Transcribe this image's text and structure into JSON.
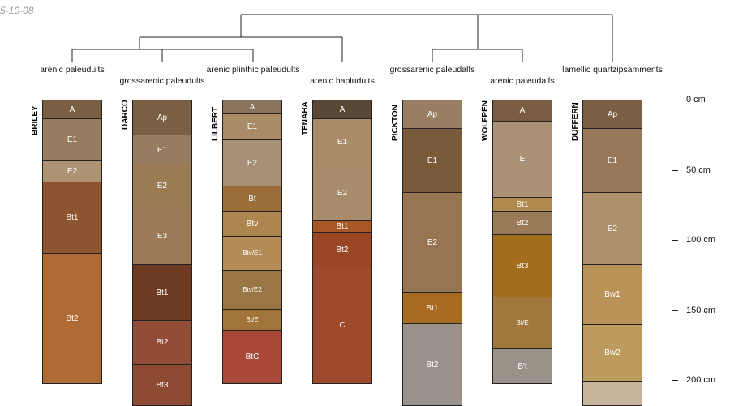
{
  "stamp": "5-10-08",
  "groups": [
    {
      "label": "arenic paleudults"
    },
    {
      "label": "grossarenic paleudults"
    },
    {
      "label": "arenic plinthic paleudults"
    },
    {
      "label": "arenic hapludults"
    },
    {
      "label": "grossarenic paleudalfs"
    },
    {
      "label": "arenic paleudalfs"
    },
    {
      "label": "lamellic quartzipsamments"
    }
  ],
  "depth_axis": {
    "ticks": [
      "0 cm",
      "50 cm",
      "100 cm",
      "150 cm",
      "200 cm"
    ]
  },
  "profiles": [
    {
      "name": "BRILEY",
      "horizons": [
        {
          "name": "A",
          "top": 0,
          "bottom": 13,
          "color": "#7a5f43"
        },
        {
          "name": "E1",
          "top": 13,
          "bottom": 43,
          "color": "#977c5f"
        },
        {
          "name": "E2",
          "top": 43,
          "bottom": 58,
          "color": "#ad9373"
        },
        {
          "name": "Bt1",
          "top": 58,
          "bottom": 109,
          "color": "#8c5530"
        },
        {
          "name": "Bt2",
          "top": 109,
          "bottom": 202,
          "color": "#b06b34"
        }
      ]
    },
    {
      "name": "DARCO",
      "horizons": [
        {
          "name": "Ap",
          "top": 0,
          "bottom": 25,
          "color": "#7a5f43"
        },
        {
          "name": "E1",
          "top": 25,
          "bottom": 46,
          "color": "#977c5f"
        },
        {
          "name": "E2",
          "top": 46,
          "bottom": 76,
          "color": "#9a7b53"
        },
        {
          "name": "E3",
          "top": 76,
          "bottom": 117,
          "color": "#9c7a58"
        },
        {
          "name": "Bt1",
          "top": 117,
          "bottom": 157,
          "color": "#6e3a22"
        },
        {
          "name": "Bt2",
          "top": 157,
          "bottom": 188,
          "color": "#914d35"
        },
        {
          "name": "Bt3",
          "top": 188,
          "bottom": 225,
          "color": "#8c4a32"
        }
      ]
    },
    {
      "name": "LILBERT",
      "horizons": [
        {
          "name": "A",
          "top": 0,
          "bottom": 10,
          "color": "#8a735c"
        },
        {
          "name": "E1",
          "top": 10,
          "bottom": 28,
          "color": "#a98b68"
        },
        {
          "name": "E2",
          "top": 28,
          "bottom": 61,
          "color": "#a79075"
        },
        {
          "name": "Bt",
          "top": 61,
          "bottom": 79,
          "color": "#9b6d38"
        },
        {
          "name": "Btv",
          "top": 79,
          "bottom": 97,
          "color": "#ad854f"
        },
        {
          "name": "Btv/E1",
          "top": 97,
          "bottom": 121,
          "color": "#b38c58",
          "small": true
        },
        {
          "name": "Btv/E2",
          "top": 121,
          "bottom": 149,
          "color": "#9a7644",
          "small": true
        },
        {
          "name": "Bt/E",
          "top": 149,
          "bottom": 164,
          "color": "#a3743a",
          "small": true
        },
        {
          "name": "BtC",
          "top": 164,
          "bottom": 202,
          "color": "#a84838"
        }
      ]
    },
    {
      "name": "TENAHA",
      "horizons": [
        {
          "name": "A",
          "top": 0,
          "bottom": 13,
          "color": "#594836"
        },
        {
          "name": "E1",
          "top": 13,
          "bottom": 46,
          "color": "#a98b68"
        },
        {
          "name": "E2",
          "top": 46,
          "bottom": 86,
          "color": "#a88c6b"
        },
        {
          "name": "Bt1",
          "top": 86,
          "bottom": 94,
          "color": "#a85726"
        },
        {
          "name": "Bt2",
          "top": 94,
          "bottom": 119,
          "color": "#9a4526"
        },
        {
          "name": "C",
          "top": 119,
          "bottom": 202,
          "color": "#9e4a2c"
        }
      ]
    },
    {
      "name": "PICKTON",
      "horizons": [
        {
          "name": "Ap",
          "top": 0,
          "bottom": 20,
          "color": "#9a7e64"
        },
        {
          "name": "E1",
          "top": 20,
          "bottom": 66,
          "color": "#7a5a3a"
        },
        {
          "name": "E2",
          "top": 66,
          "bottom": 137,
          "color": "#977452"
        },
        {
          "name": "Bt1",
          "top": 137,
          "bottom": 159,
          "color": "#a86b22"
        },
        {
          "name": "Bt2",
          "top": 159,
          "bottom": 225,
          "color": "#9a918a"
        }
      ]
    },
    {
      "name": "WOLFPEN",
      "horizons": [
        {
          "name": "A",
          "top": 0,
          "bottom": 15,
          "color": "#7a5c41"
        },
        {
          "name": "E",
          "top": 15,
          "bottom": 69,
          "color": "#aa9177"
        },
        {
          "name": "Bt1",
          "top": 69,
          "bottom": 79,
          "color": "#b08a4c"
        },
        {
          "name": "Bt2",
          "top": 79,
          "bottom": 96,
          "color": "#9a7a58"
        },
        {
          "name": "Bt3",
          "top": 96,
          "bottom": 140,
          "color": "#a36d1e"
        },
        {
          "name": "Bt/E",
          "top": 140,
          "bottom": 177,
          "color": "#a0773d",
          "small": true
        },
        {
          "name": "B't",
          "top": 177,
          "bottom": 202,
          "color": "#9a9188"
        }
      ]
    },
    {
      "name": "DUFFERN",
      "horizons": [
        {
          "name": "Ap",
          "top": 0,
          "bottom": 20,
          "color": "#7a5f43"
        },
        {
          "name": "E1",
          "top": 20,
          "bottom": 66,
          "color": "#977858"
        },
        {
          "name": "E2",
          "top": 66,
          "bottom": 117,
          "color": "#ad916d"
        },
        {
          "name": "Bw1",
          "top": 117,
          "bottom": 160,
          "color": "#ba935a"
        },
        {
          "name": "Bw2",
          "top": 160,
          "bottom": 200,
          "color": "#bd9a5e"
        },
        {
          "name": "",
          "top": 200,
          "bottom": 225,
          "color": "#c9b59e"
        }
      ]
    }
  ]
}
